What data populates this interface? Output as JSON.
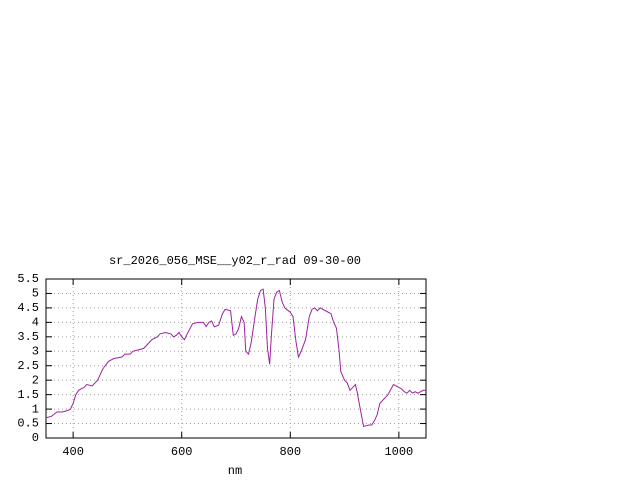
{
  "chart_data": {
    "type": "line",
    "title": "sr_2026_056_MSE__y02_r_rad 09-30-00",
    "x_label": "nm",
    "x": [
      350,
      360,
      370,
      380,
      390,
      395,
      400,
      405,
      410,
      420,
      425,
      435,
      445,
      455,
      465,
      475,
      490,
      495,
      505,
      510,
      520,
      530,
      540,
      545,
      555,
      560,
      570,
      580,
      585,
      590,
      595,
      600,
      605,
      610,
      620,
      630,
      640,
      645,
      650,
      655,
      660,
      668,
      675,
      680,
      690,
      695,
      700,
      705,
      710,
      715,
      718,
      723,
      728,
      735,
      740,
      745,
      750,
      754,
      758,
      762,
      765,
      770,
      775,
      780,
      785,
      790,
      800,
      805,
      810,
      815,
      820,
      828,
      835,
      840,
      845,
      850,
      855,
      860,
      870,
      875,
      880,
      885,
      890,
      893,
      900,
      905,
      910,
      915,
      920,
      923,
      930,
      935,
      945,
      950,
      955,
      960,
      965,
      975,
      980,
      990,
      1000,
      1005,
      1010,
      1015,
      1020,
      1025,
      1030,
      1035,
      1045,
      1050
    ],
    "series": [
      {
        "color": "#a020a0",
        "values": [
          0.7,
          0.75,
          0.9,
          0.9,
          0.95,
          1.0,
          1.2,
          1.5,
          1.65,
          1.75,
          1.85,
          1.8,
          2.0,
          2.4,
          2.65,
          2.75,
          2.8,
          2.9,
          2.9,
          3.0,
          3.05,
          3.1,
          3.3,
          3.4,
          3.5,
          3.6,
          3.65,
          3.6,
          3.5,
          3.55,
          3.65,
          3.5,
          3.4,
          3.6,
          3.95,
          4.0,
          4.0,
          3.85,
          4.0,
          4.05,
          3.85,
          3.9,
          4.3,
          4.45,
          4.4,
          3.55,
          3.6,
          3.8,
          4.2,
          4.0,
          3.0,
          2.9,
          3.3,
          4.2,
          4.8,
          5.1,
          5.15,
          4.5,
          3.1,
          2.55,
          3.5,
          4.8,
          5.05,
          5.1,
          4.7,
          4.5,
          4.35,
          4.2,
          3.4,
          2.8,
          3.0,
          3.4,
          4.2,
          4.45,
          4.5,
          4.4,
          4.5,
          4.45,
          4.35,
          4.3,
          4.0,
          3.8,
          3.0,
          2.3,
          2.0,
          1.9,
          1.65,
          1.75,
          1.85,
          1.6,
          0.9,
          0.4,
          0.45,
          0.45,
          0.6,
          0.8,
          1.2,
          1.4,
          1.5,
          1.85,
          1.75,
          1.7,
          1.6,
          1.55,
          1.65,
          1.55,
          1.6,
          1.55,
          1.65,
          1.65
        ]
      }
    ],
    "xlim": [
      350,
      1050
    ],
    "xticks": [
      400,
      600,
      800,
      1000
    ],
    "ylim": [
      0,
      5.5
    ],
    "yticks": [
      0,
      0.5,
      1,
      1.5,
      2,
      2.5,
      3,
      3.5,
      4,
      4.5,
      5,
      5.5
    ],
    "grid": true
  }
}
